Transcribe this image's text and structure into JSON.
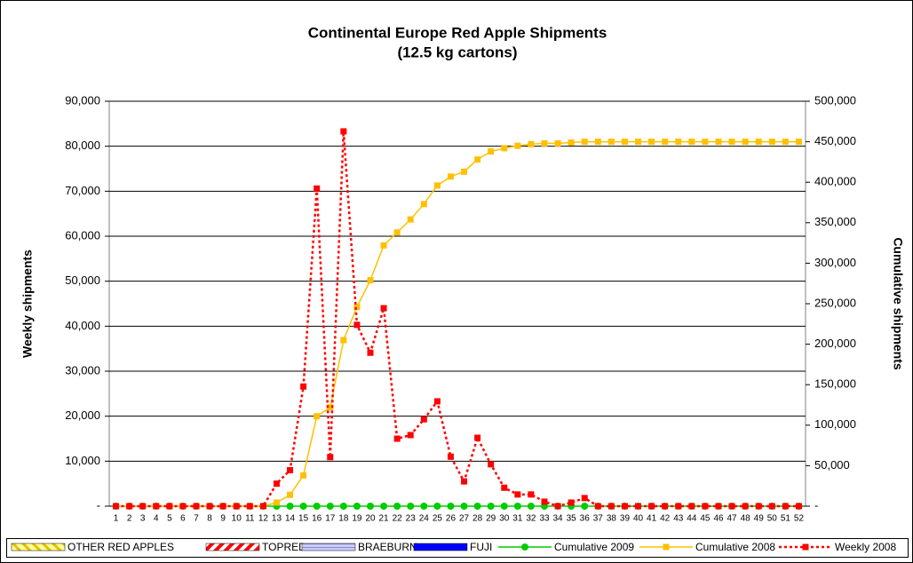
{
  "chart_data": {
    "type": "line",
    "title": "Continental Europe Red Apple Shipments",
    "subtitle": "(12.5 kg cartons)",
    "y_label": "Weekly shipments",
    "y2_label": "Cumulative shipments",
    "categories": [
      1,
      2,
      3,
      4,
      5,
      6,
      7,
      8,
      9,
      10,
      11,
      12,
      13,
      14,
      15,
      16,
      17,
      18,
      19,
      20,
      21,
      22,
      23,
      24,
      25,
      26,
      27,
      28,
      29,
      30,
      31,
      32,
      33,
      34,
      35,
      36,
      37,
      38,
      39,
      40,
      41,
      42,
      43,
      44,
      45,
      46,
      47,
      48,
      49,
      50,
      51,
      52
    ],
    "ylim": [
      0,
      90000
    ],
    "yticks": [
      {
        "value": 0,
        "label": "-"
      },
      {
        "value": 10000,
        "label": "10,000"
      },
      {
        "value": 20000,
        "label": "20,000"
      },
      {
        "value": 30000,
        "label": "30,000"
      },
      {
        "value": 40000,
        "label": "40,000"
      },
      {
        "value": 50000,
        "label": "50,000"
      },
      {
        "value": 60000,
        "label": "60,000"
      },
      {
        "value": 70000,
        "label": "70,000"
      },
      {
        "value": 80000,
        "label": "80,000"
      },
      {
        "value": 90000,
        "label": "90,000"
      }
    ],
    "y2lim": [
      0,
      500000
    ],
    "y2ticks": [
      {
        "value": 0,
        "label": "-"
      },
      {
        "value": 50000,
        "label": "50,000"
      },
      {
        "value": 100000,
        "label": "100,000"
      },
      {
        "value": 150000,
        "label": "150,000"
      },
      {
        "value": 200000,
        "label": "200,000"
      },
      {
        "value": 250000,
        "label": "250,000"
      },
      {
        "value": 300000,
        "label": "300,000"
      },
      {
        "value": 350000,
        "label": "350,000"
      },
      {
        "value": 400000,
        "label": "400,000"
      },
      {
        "value": 450000,
        "label": "450,000"
      },
      {
        "value": 500000,
        "label": "500,000"
      }
    ],
    "grid": true,
    "legend": "bottom",
    "series": [
      {
        "name": "OTHER RED APPLES",
        "type": "bar",
        "color": "#ffff99"
      },
      {
        "name": "TOPRED",
        "type": "bar",
        "color": "#ff0000"
      },
      {
        "name": "BRAEBURN",
        "type": "bar",
        "color": "#ccccff"
      },
      {
        "name": "FUJI",
        "type": "bar",
        "color": "#0000ff"
      },
      {
        "name": "Cumulative 2009",
        "type": "line",
        "axis": "y2",
        "color": "#00cc00",
        "marker": "circle",
        "values": [
          0,
          0,
          0,
          0,
          0,
          0,
          0,
          0,
          0,
          0,
          0,
          0,
          0,
          0,
          0,
          0,
          0,
          0,
          0,
          0,
          0,
          0,
          0,
          0,
          0,
          0,
          0,
          0,
          0,
          0,
          0,
          0,
          0,
          0,
          0,
          0,
          0,
          0,
          0,
          0,
          0,
          0,
          0,
          0,
          0,
          0,
          0,
          0,
          0,
          0,
          0,
          0
        ]
      },
      {
        "name": "Cumulative 2008",
        "type": "line",
        "axis": "y2",
        "color": "#ffc000",
        "marker": "square",
        "values": [
          0,
          0,
          0,
          0,
          0,
          0,
          0,
          0,
          0,
          0,
          0,
          0,
          4400,
          14000,
          38000,
          111000,
          122000,
          205000,
          246000,
          279000,
          322000,
          338000,
          354000,
          373000,
          396000,
          407000,
          413000,
          428000,
          438000,
          442000,
          445000,
          447000,
          448000,
          448000,
          449000,
          450000,
          450000,
          450000,
          450000,
          450000,
          450000,
          450000,
          450000,
          450000,
          450000,
          450000,
          450000,
          450000,
          450000,
          450000,
          450000,
          450000
        ]
      },
      {
        "name": "Weekly 2008",
        "type": "line",
        "color": "#ff0000",
        "marker": "square",
        "dash": true,
        "values": [
          0,
          0,
          0,
          0,
          0,
          0,
          0,
          0,
          0,
          0,
          0,
          0,
          5000,
          8000,
          26600,
          70600,
          10900,
          83300,
          40300,
          34100,
          44000,
          15000,
          15800,
          19300,
          23300,
          11000,
          5500,
          15200,
          9300,
          4100,
          2600,
          2600,
          1000,
          0,
          800,
          1800,
          0,
          0,
          0,
          0,
          0,
          0,
          0,
          0,
          0,
          0,
          0,
          0,
          0,
          0,
          0,
          0
        ]
      }
    ]
  }
}
